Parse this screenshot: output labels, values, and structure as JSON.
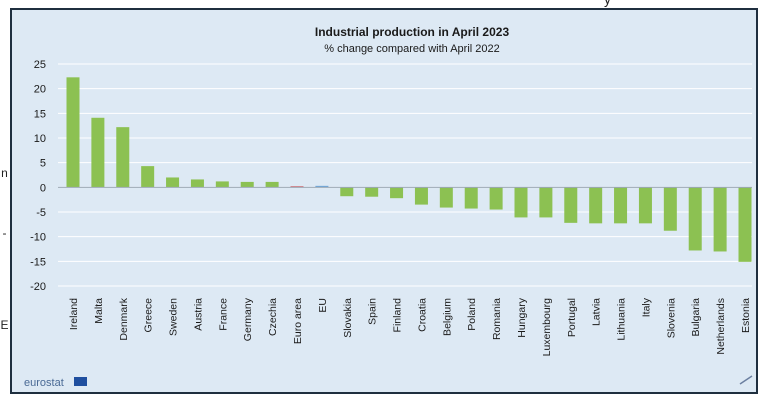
{
  "page": {
    "left_fragments": [
      "n",
      "-",
      "E"
    ],
    "top_fragment": "y"
  },
  "logo": {
    "text": "eurostat"
  },
  "colors": {
    "bar": "#8cc152",
    "bar_highlight": "#d0474c",
    "bar_eu": "#6ea6d8",
    "panel_bg": "#dde9f4",
    "grid": "#ffffff",
    "axis_text": "#1a1a1a"
  },
  "chart_data": {
    "type": "bar",
    "title": "Industrial production in April 2023",
    "subtitle": "% change compared with April 2022",
    "xlabel": "",
    "ylabel": "",
    "ylim": [
      -20,
      25
    ],
    "yticks": [
      25,
      20,
      15,
      10,
      5,
      0,
      -5,
      -10,
      -15,
      -20
    ],
    "grid": true,
    "categories": [
      "Ireland",
      "Malta",
      "Denmark",
      "Greece",
      "Sweden",
      "Austria",
      "France",
      "Germany",
      "Czechia",
      "Euro area",
      "EU",
      "Slovakia",
      "Spain",
      "Finland",
      "Croatia",
      "Belgium",
      "Poland",
      "Romania",
      "Hungary",
      "Luxembourg",
      "Portugal",
      "Latvia",
      "Lithuania",
      "Italy",
      "Slovenia",
      "Bulgaria",
      "Netherlands",
      "Estonia"
    ],
    "values": [
      22.3,
      14.1,
      12.2,
      4.3,
      2.0,
      1.6,
      1.2,
      1.1,
      1.1,
      0.2,
      0.3,
      -1.8,
      -1.9,
      -2.2,
      -3.5,
      -4.1,
      -4.3,
      -4.5,
      -6.1,
      -6.1,
      -7.2,
      -7.3,
      -7.3,
      -7.3,
      -8.8,
      -12.8,
      -13.0,
      -15.1
    ]
  }
}
